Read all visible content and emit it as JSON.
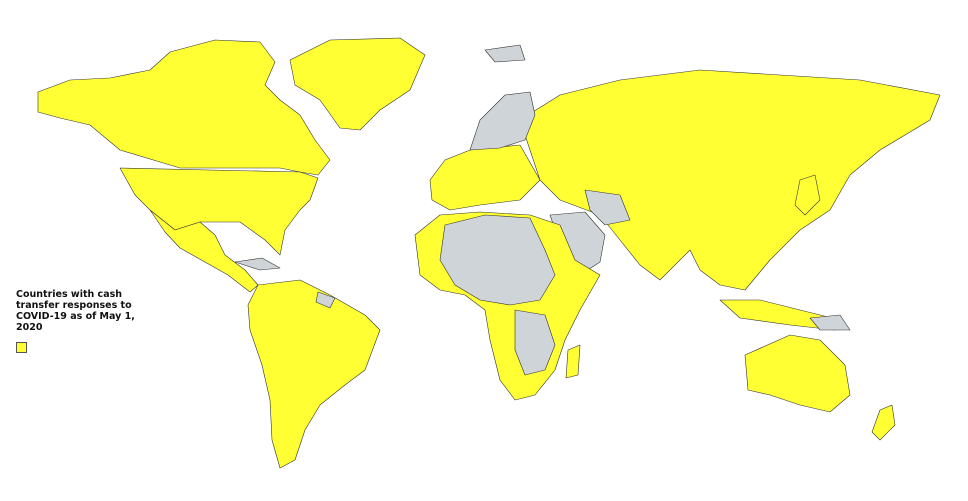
{
  "legend": {
    "title": "Countries with cash transfer responses to COVID-19 as of May 1, 2020",
    "items": [
      {
        "label": "",
        "color": "#FFFF33",
        "meaning": "cash transfer response"
      }
    ]
  },
  "colors": {
    "with_response": "#FFFF33",
    "without_response": "#CFD4D8",
    "border": "#333333"
  }
}
